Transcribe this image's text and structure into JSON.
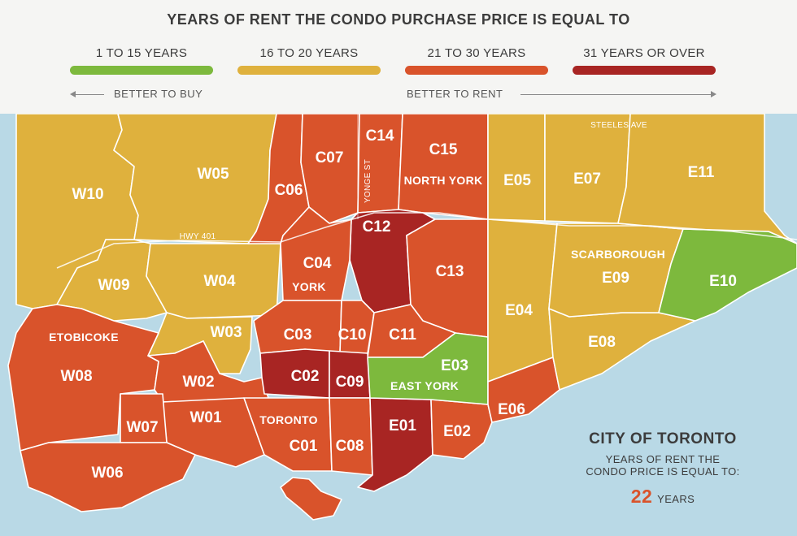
{
  "header": {
    "title": "YEARS OF RENT THE CONDO PURCHASE PRICE IS EQUAL TO",
    "legend": [
      {
        "label": "1 TO 15 YEARS",
        "color": "#7db93d"
      },
      {
        "label": "16 TO 20 YEARS",
        "color": "#dfb13d"
      },
      {
        "label": "21 TO 30 YEARS",
        "color": "#d9532b"
      },
      {
        "label": "31 YEARS OR OVER",
        "color": "#a82523"
      }
    ],
    "better_to_buy": "BETTER TO BUY",
    "better_to_rent": "BETTER TO RENT"
  },
  "map": {
    "water_color": "#b9d9e6",
    "districts": [
      {
        "code": "W10",
        "category": "16 TO 20 YEARS"
      },
      {
        "code": "W05",
        "category": "16 TO 20 YEARS"
      },
      {
        "code": "W09",
        "category": "16 TO 20 YEARS"
      },
      {
        "code": "W04",
        "category": "16 TO 20 YEARS"
      },
      {
        "code": "W03",
        "category": "16 TO 20 YEARS"
      },
      {
        "code": "W08",
        "category": "21 TO 30 YEARS"
      },
      {
        "code": "W02",
        "category": "21 TO 30 YEARS"
      },
      {
        "code": "W01",
        "category": "21 TO 30 YEARS"
      },
      {
        "code": "W07",
        "category": "21 TO 30 YEARS"
      },
      {
        "code": "W06",
        "category": "21 TO 30 YEARS"
      },
      {
        "code": "C06",
        "category": "21 TO 30 YEARS"
      },
      {
        "code": "C07",
        "category": "21 TO 30 YEARS"
      },
      {
        "code": "C14",
        "category": "21 TO 30 YEARS"
      },
      {
        "code": "C15",
        "category": "21 TO 30 YEARS"
      },
      {
        "code": "C12",
        "category": "31 YEARS OR OVER"
      },
      {
        "code": "C04",
        "category": "21 TO 30 YEARS"
      },
      {
        "code": "C13",
        "category": "21 TO 30 YEARS"
      },
      {
        "code": "C03",
        "category": "21 TO 30 YEARS"
      },
      {
        "code": "C10",
        "category": "21 TO 30 YEARS"
      },
      {
        "code": "C11",
        "category": "21 TO 30 YEARS"
      },
      {
        "code": "C02",
        "category": "31 YEARS OR OVER"
      },
      {
        "code": "C09",
        "category": "31 YEARS OR OVER"
      },
      {
        "code": "C01",
        "category": "21 TO 30 YEARS"
      },
      {
        "code": "C08",
        "category": "21 TO 30 YEARS"
      },
      {
        "code": "E01",
        "category": "31 YEARS OR OVER"
      },
      {
        "code": "E02",
        "category": "21 TO 30 YEARS"
      },
      {
        "code": "E03",
        "category": "1 TO 15 YEARS"
      },
      {
        "code": "E04",
        "category": "16 TO 20 YEARS"
      },
      {
        "code": "E05",
        "category": "16 TO 20 YEARS"
      },
      {
        "code": "E06",
        "category": "21 TO 30 YEARS"
      },
      {
        "code": "E07",
        "category": "16 TO 20 YEARS"
      },
      {
        "code": "E08",
        "category": "16 TO 20 YEARS"
      },
      {
        "code": "E09",
        "category": "16 TO 20 YEARS"
      },
      {
        "code": "E10",
        "category": "1 TO 15 YEARS"
      },
      {
        "code": "E11",
        "category": "16 TO 20 YEARS"
      }
    ],
    "areas": [
      "ETOBICOKE",
      "YORK",
      "TORONTO",
      "NORTH YORK",
      "EAST YORK",
      "SCARBOROUGH"
    ],
    "roads": [
      "HWY 401",
      "YONGE ST",
      "STEELES AVE"
    ]
  },
  "summary": {
    "title": "CITY OF TORONTO",
    "subtitle_line1": "YEARS OF RENT THE",
    "subtitle_line2": "CONDO PRICE IS EQUAL TO:",
    "value": "22",
    "unit": "YEARS"
  }
}
